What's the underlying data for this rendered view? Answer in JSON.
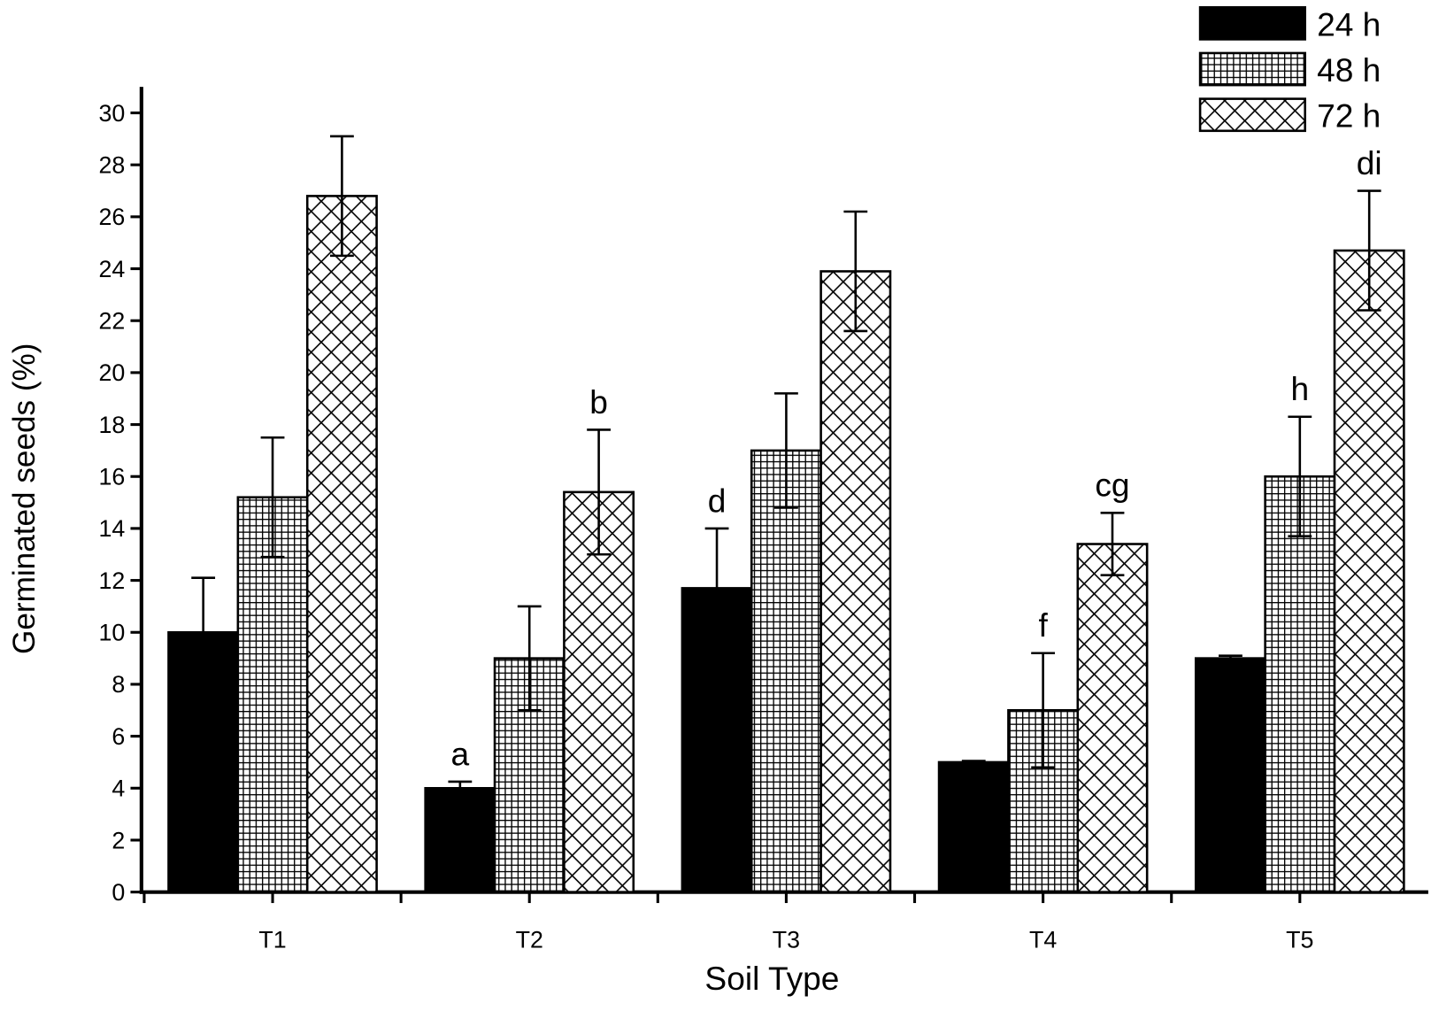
{
  "chart_data": {
    "type": "bar",
    "x_label": "Soil Type",
    "y_label": "Germinated seeds (%)",
    "categories": [
      "T1",
      "T2",
      "T3",
      "T4",
      "T5"
    ],
    "series": [
      {
        "name": "24 h",
        "color": "#000000",
        "pattern": "solid",
        "values": [
          10,
          4,
          11.7,
          5,
          9
        ],
        "errors": [
          2.1,
          0.25,
          2.3,
          0.05,
          0.1
        ],
        "labels": [
          null,
          "a",
          "d",
          null,
          null
        ]
      },
      {
        "name": "48 h",
        "color": "#000000",
        "pattern": "grid",
        "values": [
          15.2,
          9,
          17,
          7,
          16
        ],
        "errors": [
          2.3,
          2.0,
          2.2,
          2.2,
          2.3
        ],
        "labels": [
          null,
          null,
          null,
          "f",
          "h"
        ]
      },
      {
        "name": "72 h",
        "color": "#000000",
        "pattern": "crosshatch",
        "values": [
          26.8,
          15.4,
          23.9,
          13.4,
          24.7
        ],
        "errors": [
          2.3,
          2.4,
          2.3,
          1.2,
          2.3
        ],
        "labels": [
          null,
          "b",
          null,
          "cg",
          "di"
        ]
      }
    ],
    "ylim": [
      0,
      31
    ],
    "yticks": [
      0,
      2,
      4,
      6,
      8,
      10,
      12,
      14,
      16,
      18,
      20,
      22,
      24,
      26,
      28,
      30
    ],
    "grid": false,
    "legend": "top-right"
  }
}
